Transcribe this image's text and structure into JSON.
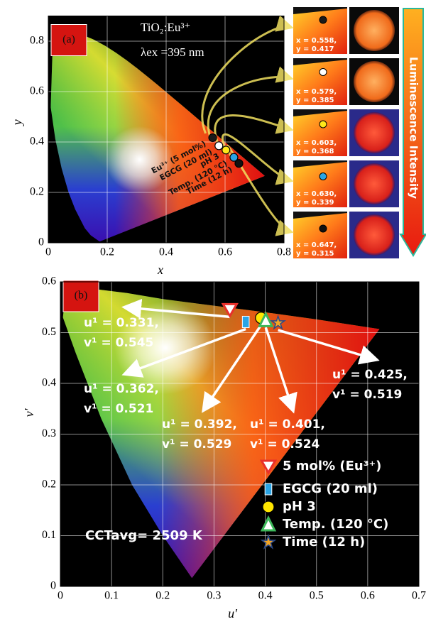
{
  "chart_data": [
    {
      "type": "scatter",
      "panel_label": "(a)",
      "title": "TiO₂:Eu³⁺",
      "subtitle": "λex =395 nm",
      "xlabel": "x",
      "ylabel": "y",
      "annotation": "Luminescence Intensity",
      "xlim": [
        0,
        0.8
      ],
      "ylim": [
        0,
        0.9
      ],
      "xticks": [
        0,
        0.2,
        0.4,
        0.6,
        0.8
      ],
      "yticks": [
        0,
        0.2,
        0.4,
        0.6,
        0.8
      ],
      "grid": true,
      "series": [
        {
          "name": "Eu³⁺ (5 mol%)",
          "color": "#1a1a1a",
          "marker": "circle",
          "x": [
            0.558
          ],
          "values": [
            0.417
          ],
          "x_labels": [
            "x = 0.558,"
          ],
          "value_labels": [
            "y = 0.417"
          ]
        },
        {
          "name": "EGCG (20 ml)",
          "color": "#ffffff",
          "marker": "circle",
          "x": [
            0.579
          ],
          "values": [
            0.385
          ],
          "x_labels": [
            "x = 0.579,"
          ],
          "value_labels": [
            "y = 0.385"
          ]
        },
        {
          "name": "pH 3",
          "color": "#ffe81a",
          "marker": "circle",
          "x": [
            0.603
          ],
          "values": [
            0.368
          ],
          "x_labels": [
            "x = 0.603,"
          ],
          "value_labels": [
            "y = 0.368"
          ]
        },
        {
          "name": "Temp. (120 °C)",
          "color": "#2aa5e6",
          "marker": "circle",
          "x": [
            0.63
          ],
          "values": [
            0.339
          ],
          "x_labels": [
            "x = 0.630,"
          ],
          "value_labels": [
            "y = 0.339"
          ]
        },
        {
          "name": "Time (12 h)",
          "color": "#111111",
          "marker": "circle",
          "x": [
            0.647
          ],
          "values": [
            0.315
          ],
          "x_labels": [
            "x = 0.647,"
          ],
          "value_labels": [
            "y = 0.315"
          ]
        }
      ]
    },
    {
      "type": "scatter",
      "panel_label": "(b)",
      "xlabel": "u'",
      "ylabel": "v'",
      "annotation": "CCTavg= 2509 K",
      "xlim": [
        0,
        0.7
      ],
      "ylim": [
        0,
        0.6
      ],
      "xticks": [
        0,
        0.1,
        0.2,
        0.3,
        0.4,
        0.5,
        0.6,
        0.7
      ],
      "yticks": [
        0,
        0.1,
        0.2,
        0.3,
        0.4,
        0.5,
        0.6
      ],
      "grid": true,
      "legend": "lower right",
      "series": [
        {
          "name": "5 mol% (Eu³⁺)",
          "color": "#e8302a",
          "marker": "triangle-down",
          "x": [
            0.331
          ],
          "values": [
            0.545
          ],
          "x_labels": [
            "u¹ = 0.331,"
          ],
          "value_labels": [
            "v¹ = 0.545"
          ]
        },
        {
          "name": "EGCG (20 ml)",
          "color": "#2aa5e6",
          "marker": "square",
          "x": [
            0.362
          ],
          "values": [
            0.521
          ],
          "x_labels": [
            "u¹ = 0.362,"
          ],
          "value_labels": [
            "v¹ = 0.521"
          ]
        },
        {
          "name": "pH 3",
          "color": "#ffe600",
          "marker": "circle",
          "x": [
            0.392
          ],
          "values": [
            0.529
          ],
          "x_labels": [
            "u¹ = 0.392,"
          ],
          "value_labels": [
            "v¹ = 0.529"
          ]
        },
        {
          "name": "Temp. (120 °C)",
          "color": "#3cb85a",
          "marker": "triangle",
          "x": [
            0.401
          ],
          "values": [
            0.524
          ],
          "x_labels": [
            "u¹ = 0.401,"
          ],
          "value_labels": [
            "v¹ = 0.524"
          ]
        },
        {
          "name": "Time (12 h)",
          "color": "#f5a623",
          "marker": "star",
          "x": [
            0.425
          ],
          "values": [
            0.519
          ],
          "x_labels": [
            "u¹ = 0.425,"
          ],
          "value_labels": [
            "v¹ = 0.519"
          ]
        }
      ]
    }
  ]
}
